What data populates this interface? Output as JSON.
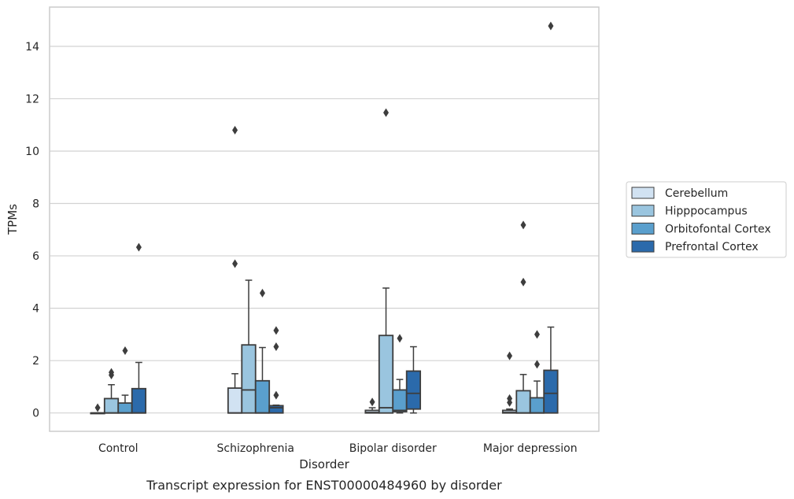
{
  "chart_data": {
    "type": "box",
    "title": "",
    "caption": "Transcript expression for ENST00000484960 by disorder",
    "xlabel": "Disorder",
    "ylabel": "TPMs",
    "ylim": [
      -0.7,
      15.5
    ],
    "yticks": [
      0,
      2,
      4,
      6,
      8,
      10,
      12,
      14
    ],
    "grid": true,
    "legend_position": "right",
    "categories": [
      "Control",
      "Schizophrenia",
      "Bipolar disorder",
      "Major depression"
    ],
    "series": [
      {
        "name": "Cerebellum",
        "color": "#d1e2f2",
        "boxes": [
          {
            "whislo": 0,
            "q1": 0,
            "med": 0,
            "q3": 0,
            "whishi": 0,
            "fliers": [
              0.2
            ]
          },
          {
            "whislo": 0,
            "q1": 0,
            "med": 0,
            "q3": 0.95,
            "whishi": 1.5,
            "fliers": [
              5.7,
              10.8
            ]
          },
          {
            "whislo": 0,
            "q1": 0,
            "med": 0.02,
            "q3": 0.1,
            "whishi": 0.2,
            "fliers": [
              0.42
            ]
          },
          {
            "whislo": 0,
            "q1": 0,
            "med": 0.02,
            "q3": 0.1,
            "whishi": 0.15,
            "fliers": [
              0.4,
              0.55,
              2.18
            ]
          }
        ]
      },
      {
        "name": "Hipppocampus",
        "color": "#9ac5df",
        "boxes": [
          {
            "whislo": 0,
            "q1": 0,
            "med": 0,
            "q3": 0.55,
            "whishi": 1.08,
            "fliers": [
              1.45,
              1.55
            ]
          },
          {
            "whislo": 0,
            "q1": 0,
            "med": 0.88,
            "q3": 2.6,
            "whishi": 5.07,
            "fliers": []
          },
          {
            "whislo": 0,
            "q1": 0,
            "med": 0.2,
            "q3": 2.96,
            "whishi": 4.77,
            "fliers": [
              11.47
            ]
          },
          {
            "whislo": 0,
            "q1": 0,
            "med": 0,
            "q3": 0.85,
            "whishi": 1.47,
            "fliers": [
              5.0,
              7.18
            ]
          }
        ]
      },
      {
        "name": "Orbitofontal Cortex",
        "color": "#5a9fcd",
        "boxes": [
          {
            "whislo": 0,
            "q1": 0,
            "med": 0,
            "q3": 0.38,
            "whishi": 0.68,
            "fliers": [
              2.38
            ]
          },
          {
            "whislo": 0,
            "q1": 0,
            "med": 0,
            "q3": 1.23,
            "whishi": 2.5,
            "fliers": [
              4.58
            ]
          },
          {
            "whislo": 0,
            "q1": 0.05,
            "med": 0.1,
            "q3": 0.88,
            "whishi": 1.28,
            "fliers": [
              2.85
            ]
          },
          {
            "whislo": 0,
            "q1": 0,
            "med": 0,
            "q3": 0.58,
            "whishi": 1.22,
            "fliers": [
              1.86,
              3.0
            ]
          }
        ]
      },
      {
        "name": "Prefrontal Cortex",
        "color": "#2b6aab",
        "boxes": [
          {
            "whislo": 0,
            "q1": 0,
            "med": 0,
            "q3": 0.93,
            "whishi": 1.93,
            "fliers": [
              6.33
            ]
          },
          {
            "whislo": 0,
            "q1": 0,
            "med": 0.2,
            "q3": 0.28,
            "whishi": 0.3,
            "fliers": [
              0.68,
              2.53,
              3.15
            ]
          },
          {
            "whislo": 0,
            "q1": 0.15,
            "med": 0.75,
            "q3": 1.6,
            "whishi": 2.53,
            "fliers": []
          },
          {
            "whislo": 0,
            "q1": 0,
            "med": 0.75,
            "q3": 1.63,
            "whishi": 3.28,
            "fliers": [
              14.78
            ]
          }
        ]
      }
    ]
  }
}
